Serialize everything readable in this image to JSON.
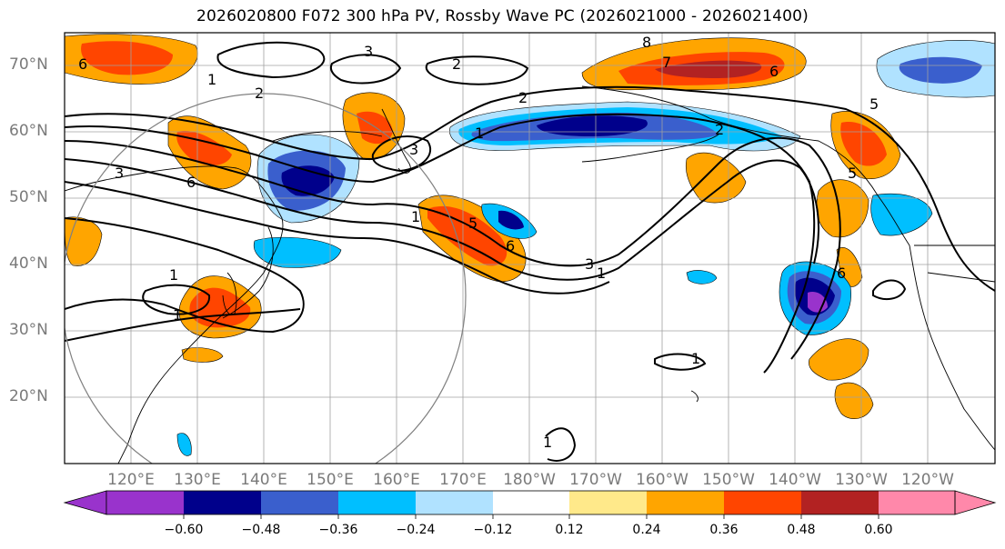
{
  "title": "2026020800 F072 300 hPa PV, Rossby Wave PC (2026021000 - 2026021400)",
  "lat_labels": [
    "70°N",
    "60°N",
    "50°N",
    "40°N",
    "30°N",
    "20°N"
  ],
  "lon_labels": [
    "120°E",
    "130°E",
    "140°E",
    "150°E",
    "160°E",
    "170°E",
    "180°W",
    "170°W",
    "160°W",
    "150°W",
    "140°W",
    "130°W",
    "120°W"
  ],
  "colorbar": {
    "labels": [
      "−0.60",
      "−0.48",
      "−0.36",
      "−0.24",
      "−0.12",
      "0.12",
      "0.24",
      "0.36",
      "0.48",
      "0.60"
    ],
    "colors": [
      "#9933cc",
      "#00008b",
      "#3a5fcd",
      "#00bfff",
      "#b0e2ff",
      "#ffffff",
      "#ffe98a",
      "#ffa500",
      "#ff4500",
      "#b22222",
      "#ff88aa"
    ]
  },
  "contour_labels": [
    "6",
    "1",
    "2",
    "3",
    "2",
    "8",
    "7",
    "6",
    "5",
    "1",
    "2",
    "3",
    "5",
    "6",
    "1",
    "3",
    "1",
    "6",
    "3",
    "1",
    "1",
    "1",
    "6",
    "5",
    "2",
    "1"
  ],
  "colors": {
    "land_outline": "#000000",
    "grid": "#a0a0a0",
    "contour": "#000000",
    "circle": "#808080"
  }
}
